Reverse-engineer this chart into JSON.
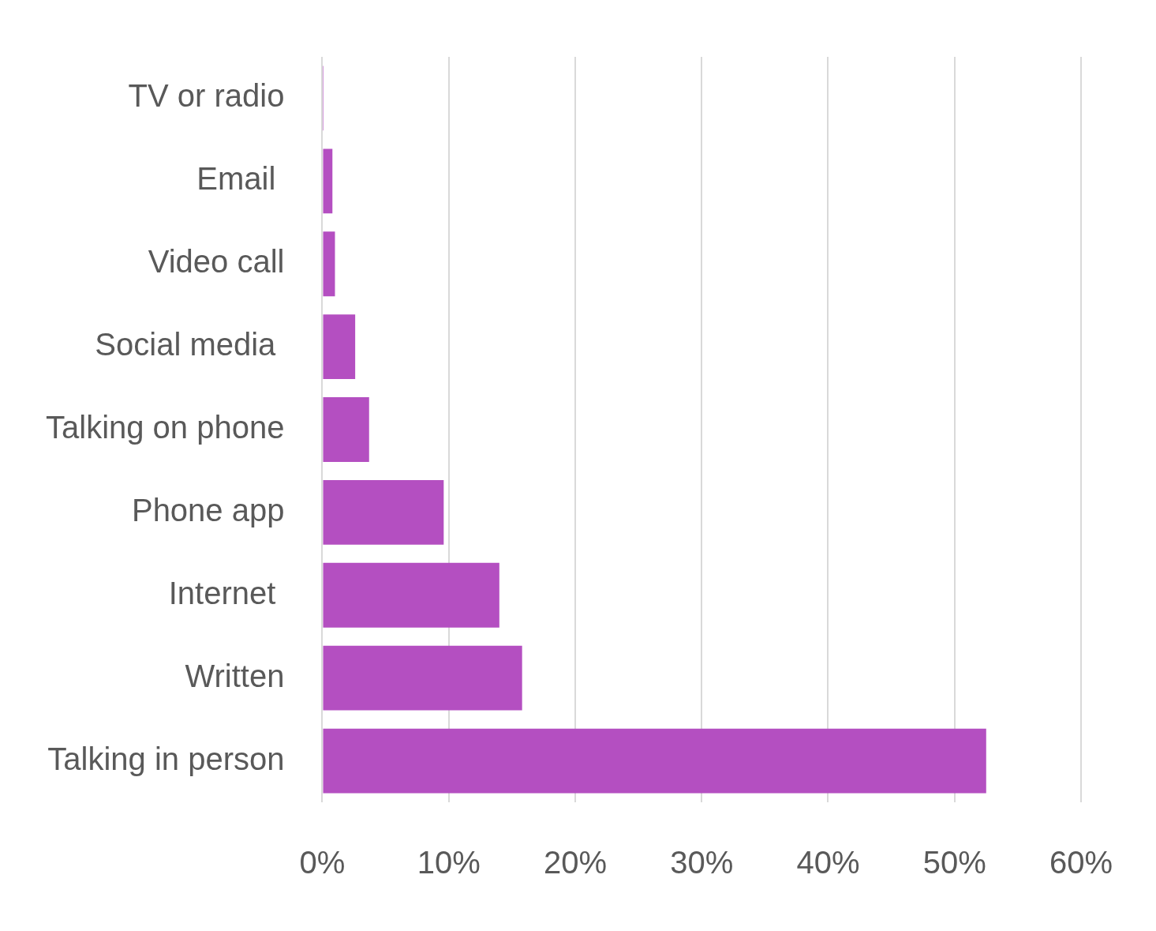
{
  "chart_data": {
    "type": "bar",
    "orientation": "horizontal",
    "categories": [
      "TV or radio",
      "Email ",
      "Video call",
      "Social media ",
      "Talking on phone",
      "Phone app",
      "Internet ",
      "Written",
      "Talking in person"
    ],
    "values": [
      0.1,
      0.8,
      1.0,
      2.6,
      3.7,
      9.6,
      14.0,
      15.8,
      52.5
    ],
    "color": "#b44fc1",
    "xlim": [
      0,
      60
    ],
    "xticks": [
      {
        "value": 0,
        "label": "0%"
      },
      {
        "value": 10,
        "label": "10%"
      },
      {
        "value": 20,
        "label": "20%"
      },
      {
        "value": 30,
        "label": "30%"
      },
      {
        "value": 40,
        "label": "40%"
      },
      {
        "value": 50,
        "label": "50%"
      },
      {
        "value": 60,
        "label": "60%"
      }
    ],
    "grid": "x"
  }
}
